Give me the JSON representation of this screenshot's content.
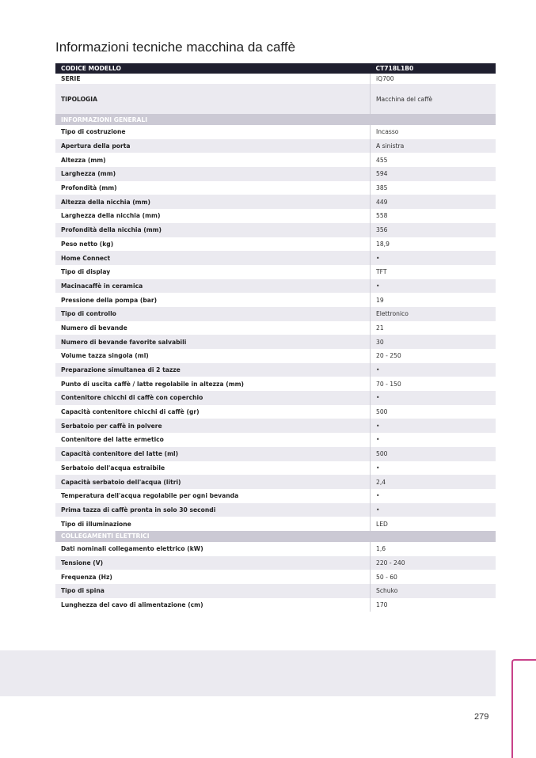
{
  "title": "Informazioni tecniche macchina da caffè",
  "header": {
    "label": "CODICE MODELLO",
    "value": "CT718L1B0"
  },
  "top_rows": [
    {
      "label": "SERIE",
      "value": "iQ700"
    },
    {
      "label": "TIPOLOGIA",
      "value": "Macchina del caffè"
    }
  ],
  "sections": [
    {
      "title": "INFORMAZIONI GENERALI",
      "rows": [
        {
          "label": "Tipo di costruzione",
          "value": "Incasso"
        },
        {
          "label": "Apertura della porta",
          "value": "A sinistra"
        },
        {
          "label": "Altezza (mm)",
          "value": "455"
        },
        {
          "label": "Larghezza (mm)",
          "value": "594"
        },
        {
          "label": "Profondità (mm)",
          "value": "385"
        },
        {
          "label": "Altezza della nicchia (mm)",
          "value": "449"
        },
        {
          "label": "Larghezza della nicchia (mm)",
          "value": "558"
        },
        {
          "label": "Profondità della nicchia (mm)",
          "value": "356"
        },
        {
          "label": "Peso netto (kg)",
          "value": "18,9"
        },
        {
          "label": "Home Connect",
          "value": "•"
        },
        {
          "label": "Tipo di display",
          "value": "TFT"
        },
        {
          "label": "Macinacaffè in ceramica",
          "value": "•"
        },
        {
          "label": "Pressione della pompa (bar)",
          "value": "19"
        },
        {
          "label": "Tipo di controllo",
          "value": "Elettronico"
        },
        {
          "label": "Numero di bevande",
          "value": "21"
        },
        {
          "label": "Numero di bevande favorite salvabili",
          "value": "30"
        },
        {
          "label": "Volume tazza singola (ml)",
          "value": "20 - 250"
        },
        {
          "label": "Preparazione simultanea di 2 tazze",
          "value": "•"
        },
        {
          "label": "Punto di uscita caffè / latte regolabile in altezza (mm)",
          "value": "70 - 150"
        },
        {
          "label": "Contenitore chicchi di caffè con coperchio",
          "value": "•"
        },
        {
          "label": "Capacità contenitore chicchi di caffè (gr)",
          "value": "500"
        },
        {
          "label": "Serbatoio per caffè in polvere",
          "value": "•"
        },
        {
          "label": "Contenitore del latte ermetico",
          "value": "•"
        },
        {
          "label": "Capacità contenitore del latte (ml)",
          "value": "500"
        },
        {
          "label": "Serbatoio dell'acqua estraibile",
          "value": "•"
        },
        {
          "label": "Capacità serbatoio dell'acqua (litri)",
          "value": "2,4"
        },
        {
          "label": "Temperatura dell'acqua regolabile per ogni bevanda",
          "value": "•"
        },
        {
          "label": "Prima tazza di caffè pronta in solo 30 secondi",
          "value": "•"
        },
        {
          "label": "Tipo di illuminazione",
          "value": "LED"
        }
      ]
    },
    {
      "title": "COLLEGAMENTI ELETTRICI",
      "rows": [
        {
          "label": "Dati nominali collegamento elettrico (kW)",
          "value": "1,6"
        },
        {
          "label": "Tensione (V)",
          "value": "220 - 240"
        },
        {
          "label": "Frequenza (Hz)",
          "value": "50 - 60"
        },
        {
          "label": "Tipo di spina",
          "value": "Schuko"
        },
        {
          "label": "Lunghezza del cavo di alimentazione (cm)",
          "value": "170"
        }
      ]
    }
  ],
  "page_number": "279",
  "colors": {
    "header": "#1f1f2f",
    "section": "#cbc9d4",
    "stripe": "#ebeaf0",
    "accent": "#c8428a"
  }
}
